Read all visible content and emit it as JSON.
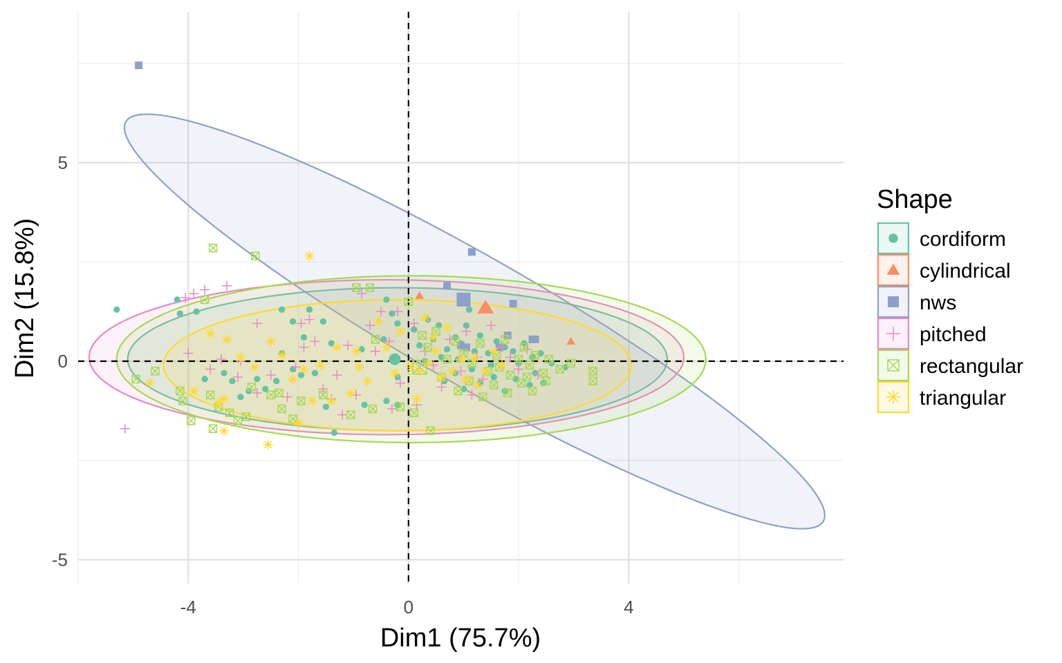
{
  "chart_data": {
    "type": "scatter",
    "title": "",
    "xlabel": "Dim1 (75.7%)",
    "ylabel": "Dim2 (15.8%)",
    "xlim": [
      -6,
      7.9
    ],
    "ylim": [
      -5.6,
      8.8
    ],
    "x_ticks": [
      -4,
      0,
      4
    ],
    "y_ticks": [
      -5,
      0,
      5
    ],
    "x_tick_labels": [
      "-4",
      "0",
      "4"
    ],
    "y_tick_labels": [
      "-5",
      "0",
      "5"
    ],
    "grid": true,
    "reference_lines": {
      "x": 0,
      "y": 0,
      "style": "dashed"
    },
    "legend": {
      "title": "Shape",
      "position": "right"
    },
    "series": [
      {
        "name": "cordiform",
        "color": "#66C2A5",
        "marker": "circle",
        "centroid": [
          -0.25,
          0.05
        ],
        "ellipse": {
          "center": [
            -0.2,
            0.05
          ],
          "rx": 4.9,
          "ry": 1.8,
          "angle": 0
        },
        "points": [
          [
            -5.3,
            1.3
          ],
          [
            -4.2,
            1.55
          ],
          [
            -4.15,
            1.2
          ],
          [
            -3.85,
            1.25
          ],
          [
            -2.3,
            1.3
          ],
          [
            -2.1,
            1.0
          ],
          [
            -1.9,
            0.6
          ],
          [
            -1.8,
            1.3
          ],
          [
            -1.55,
            1.0
          ],
          [
            -1.4,
            0.45
          ],
          [
            -2.3,
            0.2
          ],
          [
            -2.1,
            -0.2
          ],
          [
            -1.95,
            -0.35
          ],
          [
            -1.7,
            -0.3
          ],
          [
            -2.4,
            -0.5
          ],
          [
            -2.75,
            -0.45
          ],
          [
            -2.6,
            -0.7
          ],
          [
            -3.2,
            -0.5
          ],
          [
            -3.7,
            -0.45
          ],
          [
            -3.35,
            -0.3
          ],
          [
            -3.05,
            -0.9
          ],
          [
            -2.9,
            -0.75
          ],
          [
            -1.5,
            -1.15
          ],
          [
            -1.35,
            -1.8
          ],
          [
            -0.85,
            0.3
          ],
          [
            -0.4,
            1.55
          ],
          [
            -0.3,
            1.2
          ],
          [
            -0.2,
            0.95
          ],
          [
            -0.45,
            0.55
          ],
          [
            -0.2,
            -0.4
          ],
          [
            -0.4,
            -1.0
          ],
          [
            -0.2,
            -1.1
          ],
          [
            0.1,
            0.8
          ],
          [
            0.2,
            0.4
          ],
          [
            0.35,
            1.05
          ],
          [
            0.45,
            0.55
          ],
          [
            0.55,
            0.9
          ],
          [
            0.7,
            0.3
          ],
          [
            0.85,
            0.6
          ],
          [
            0.95,
            0.45
          ],
          [
            1.05,
            0.9
          ],
          [
            1.2,
            0.25
          ],
          [
            1.3,
            0.65
          ],
          [
            1.45,
            0.2
          ],
          [
            1.5,
            -0.1
          ],
          [
            1.6,
            0.5
          ],
          [
            1.75,
            0.35
          ],
          [
            1.9,
            0.25
          ],
          [
            2.0,
            -0.05
          ],
          [
            2.1,
            0.45
          ],
          [
            2.25,
            0.1
          ],
          [
            2.3,
            -0.3
          ],
          [
            2.4,
            0.2
          ],
          [
            2.6,
            -0.05
          ],
          [
            2.85,
            -0.15
          ],
          [
            0.65,
            -0.5
          ],
          [
            0.85,
            -0.3
          ],
          [
            1.0,
            -0.7
          ],
          [
            1.15,
            -0.2
          ],
          [
            1.3,
            -0.55
          ],
          [
            1.55,
            -0.4
          ],
          [
            1.75,
            -0.75
          ],
          [
            1.95,
            -0.45
          ],
          [
            2.2,
            -0.6
          ],
          [
            2.45,
            -0.55
          ],
          [
            0.3,
            0.0
          ],
          [
            0.6,
            0.1
          ],
          [
            0.9,
            0.05
          ],
          [
            1.1,
            1.3
          ],
          [
            -0.8,
            -1.1
          ]
        ]
      },
      {
        "name": "cylindrical",
        "color": "#FC8D62",
        "marker": "triangle",
        "centroid": [
          1.4,
          1.35
        ],
        "points": [
          [
            0.2,
            1.65
          ],
          [
            2.95,
            0.5
          ]
        ]
      },
      {
        "name": "nws",
        "color": "#8DA0CB",
        "marker": "square",
        "centroid": [
          1.0,
          1.55
        ],
        "ellipse": {
          "center": [
            1.2,
            1.0
          ],
          "rx": 8.1,
          "ry": 1.45,
          "angle": -39
        },
        "points": [
          [
            -4.9,
            7.45
          ],
          [
            1.15,
            2.75
          ],
          [
            0.7,
            1.9
          ],
          [
            1.9,
            1.45
          ],
          [
            1.65,
            0.35
          ],
          [
            2.25,
            0.55
          ],
          [
            1.05,
            0.35
          ],
          [
            1.8,
            0.65
          ],
          [
            2.3,
            0.55
          ],
          [
            0.95,
            0.4
          ]
        ]
      },
      {
        "name": "pitched",
        "color": "#E78AC3",
        "marker": "plus",
        "ellipse": {
          "center": [
            -0.4,
            0.1
          ],
          "rx": 5.4,
          "ry": 1.95,
          "angle": 0
        },
        "points": [
          [
            -5.15,
            -1.7
          ],
          [
            -3.9,
            1.7
          ],
          [
            -3.7,
            1.8
          ],
          [
            -3.3,
            1.9
          ],
          [
            -2.75,
            0.95
          ],
          [
            -1.95,
            0.95
          ],
          [
            -1.8,
            1.05
          ],
          [
            -1.7,
            0.5
          ],
          [
            -1.55,
            -0.7
          ],
          [
            -1.3,
            -0.35
          ],
          [
            -1.1,
            0.4
          ],
          [
            -0.95,
            -0.85
          ],
          [
            -0.7,
            0.9
          ],
          [
            -0.6,
            0.25
          ],
          [
            -0.5,
            1.25
          ],
          [
            -0.35,
            0.5
          ],
          [
            -0.15,
            -0.55
          ],
          [
            0.1,
            0.95
          ],
          [
            -0.2,
            1.25
          ],
          [
            -1.2,
            -1.35
          ],
          [
            -2.2,
            -0.9
          ],
          [
            -2.75,
            -0.8
          ],
          [
            -3.1,
            -0.4
          ],
          [
            -3.4,
            0.05
          ],
          [
            -4.0,
            0.2
          ],
          [
            -3.6,
            -0.2
          ],
          [
            -3.05,
            0.0
          ],
          [
            -2.05,
            -0.15
          ],
          [
            -1.4,
            -0.95
          ],
          [
            -0.85,
            1.7
          ],
          [
            0.3,
            0.25
          ],
          [
            0.45,
            -0.1
          ],
          [
            0.75,
            0.55
          ],
          [
            1.05,
            0.75
          ],
          [
            1.25,
            0.1
          ],
          [
            1.35,
            -0.45
          ],
          [
            1.5,
            0.9
          ],
          [
            1.7,
            0.35
          ],
          [
            1.85,
            0.1
          ],
          [
            2.0,
            -0.2
          ],
          [
            2.15,
            0.3
          ],
          [
            2.35,
            -0.35
          ],
          [
            0.6,
            -0.65
          ],
          [
            0.95,
            -0.25
          ],
          [
            1.15,
            -0.85
          ],
          [
            -2.5,
            -0.35
          ],
          [
            -1.9,
            0.35
          ],
          [
            -0.3,
            -1.2
          ],
          [
            0.15,
            -1.1
          ],
          [
            -4.05,
            1.6
          ]
        ]
      },
      {
        "name": "rectangular",
        "color": "#A6D854",
        "marker": "square-cross",
        "centroid": [
          0.2,
          -0.15
        ],
        "ellipse": {
          "center": [
            0.05,
            0.05
          ],
          "rx": 5.35,
          "ry": 2.1,
          "angle": 0
        },
        "points": [
          [
            -3.55,
            2.85
          ],
          [
            -2.78,
            2.65
          ],
          [
            -3.7,
            1.55
          ],
          [
            -4.95,
            -0.45
          ],
          [
            -4.6,
            -0.25
          ],
          [
            -4.15,
            -0.75
          ],
          [
            -4.1,
            -1.0
          ],
          [
            -3.95,
            -1.5
          ],
          [
            -3.6,
            -0.85
          ],
          [
            -3.45,
            -1.15
          ],
          [
            -3.55,
            -1.7
          ],
          [
            -3.25,
            -1.3
          ],
          [
            -3.1,
            -1.5
          ],
          [
            -2.95,
            -1.4
          ],
          [
            -2.85,
            -0.65
          ],
          [
            -2.5,
            -0.85
          ],
          [
            -2.35,
            -0.8
          ],
          [
            -2.3,
            -1.2
          ],
          [
            -2.1,
            -1.45
          ],
          [
            -1.95,
            -1.0
          ],
          [
            -1.55,
            -0.85
          ],
          [
            -1.05,
            -1.35
          ],
          [
            -0.65,
            -1.2
          ],
          [
            -0.15,
            -1.15
          ],
          [
            0.1,
            -1.3
          ],
          [
            0.4,
            -1.75
          ],
          [
            -0.6,
            0.55
          ],
          [
            -0.7,
            1.85
          ],
          [
            -0.95,
            1.85
          ],
          [
            0.0,
            1.5
          ],
          [
            0.25,
            0.65
          ],
          [
            0.35,
            0.35
          ],
          [
            0.5,
            0.75
          ],
          [
            0.7,
            0.05
          ],
          [
            0.85,
            0.5
          ],
          [
            1.0,
            0.2
          ],
          [
            1.15,
            -0.05
          ],
          [
            1.3,
            0.45
          ],
          [
            1.45,
            -0.25
          ],
          [
            1.6,
            0.15
          ],
          [
            1.75,
            0.55
          ],
          [
            1.85,
            -0.35
          ],
          [
            2.0,
            0.05
          ],
          [
            2.1,
            0.35
          ],
          [
            2.2,
            -0.1
          ],
          [
            2.3,
            0.15
          ],
          [
            2.45,
            -0.3
          ],
          [
            2.55,
            0.05
          ],
          [
            2.75,
            -0.2
          ],
          [
            2.95,
            -0.05
          ],
          [
            3.35,
            -0.25
          ],
          [
            3.35,
            -0.5
          ],
          [
            0.9,
            -0.75
          ],
          [
            1.1,
            -0.5
          ],
          [
            1.35,
            -0.9
          ],
          [
            1.55,
            -0.6
          ],
          [
            1.8,
            -0.8
          ],
          [
            2.05,
            -0.55
          ],
          [
            2.25,
            -0.75
          ],
          [
            2.5,
            -0.5
          ],
          [
            0.6,
            -0.4
          ],
          [
            1.65,
            -0.15
          ],
          [
            2.15,
            -0.4
          ]
        ]
      },
      {
        "name": "triangular",
        "color": "#FFD92F",
        "marker": "asterisk",
        "ellipse": {
          "center": [
            -0.2,
            -0.1
          ],
          "rx": 4.25,
          "ry": 1.65,
          "angle": 0
        },
        "points": [
          [
            -1.8,
            2.65
          ],
          [
            -4.7,
            -0.55
          ],
          [
            -3.9,
            -0.75
          ],
          [
            -3.45,
            -1.05
          ],
          [
            -3.35,
            -0.95
          ],
          [
            -3.35,
            -1.75
          ],
          [
            -2.55,
            -2.1
          ],
          [
            -3.6,
            0.7
          ],
          [
            -3.3,
            0.55
          ],
          [
            -3.05,
            0.1
          ],
          [
            -2.8,
            -0.15
          ],
          [
            -2.5,
            0.5
          ],
          [
            -2.3,
            0.15
          ],
          [
            -2.1,
            -0.45
          ],
          [
            -1.9,
            -0.2
          ],
          [
            -1.75,
            -1.0
          ],
          [
            -1.6,
            -0.1
          ],
          [
            -1.3,
            0.35
          ],
          [
            -1.05,
            -0.8
          ],
          [
            -0.95,
            0.25
          ],
          [
            -0.75,
            -0.5
          ],
          [
            -0.55,
            1.0
          ],
          [
            -0.4,
            0.35
          ],
          [
            -0.25,
            -0.3
          ],
          [
            0.05,
            -0.15
          ],
          [
            0.2,
            -0.25
          ],
          [
            0.35,
            -0.05
          ],
          [
            0.5,
            0.25
          ],
          [
            0.6,
            -0.4
          ],
          [
            0.8,
            -0.25
          ],
          [
            0.95,
            0.05
          ],
          [
            1.05,
            -0.45
          ],
          [
            1.2,
            0.1
          ],
          [
            1.4,
            -0.25
          ],
          [
            1.55,
            0.25
          ],
          [
            1.7,
            -0.1
          ],
          [
            0.15,
            -0.95
          ],
          [
            0.3,
            1.1
          ],
          [
            0.7,
            0.85
          ],
          [
            -1.4,
            -1.0
          ],
          [
            -2.0,
            -1.55
          ],
          [
            -0.15,
            0.75
          ],
          [
            0.45,
            0.6
          ],
          [
            1.25,
            -0.6
          ],
          [
            -0.9,
            -0.15
          ]
        ]
      }
    ]
  }
}
